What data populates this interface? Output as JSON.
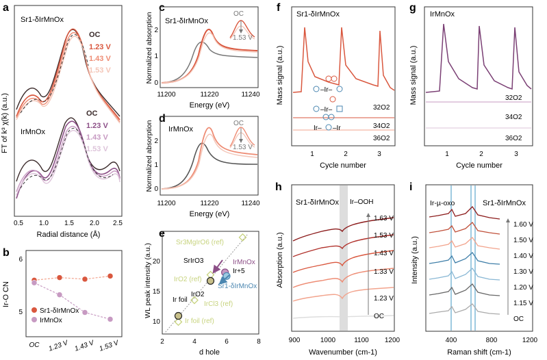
{
  "colors": {
    "sr": "#d9573e",
    "sr_light": "#f2a38c",
    "sr_pale": "#f4c6b8",
    "ir": "#8c4f87",
    "ir_light": "#c79ac2",
    "ir_pale": "#ddc4da",
    "dark": "#3a2a2a",
    "grey": "#777777",
    "raman_blue": "#7fbfdc",
    "ref_green": "#c7d37e",
    "fit": "#333333"
  },
  "panels": {
    "a": {
      "letter": "a",
      "ylabel": "FT of k³ χ(k) (a.u.)",
      "xlabel": "Radial distance (Å)",
      "xlim": [
        0.5,
        2.5
      ],
      "xticks": [
        "0.5",
        "1.0",
        "1.5",
        "2.0",
        "2.5"
      ],
      "sample_top": "Sr1-δIrMnOx",
      "sample_bottom": "IrMnOx",
      "legend_top": [
        "OC",
        "1.23 V",
        "1.43 V",
        "1.53 V"
      ],
      "legend_bottom": [
        "OC",
        "1.23 V",
        "1.43 V",
        "1.53 V"
      ]
    },
    "b": {
      "letter": "b",
      "ylabel": "Ir-O CN",
      "ylim": [
        4.5,
        6.0
      ],
      "yticks": [
        "5",
        "6"
      ],
      "categories": [
        "OC",
        "1.23 V",
        "1.43 V",
        "1.53 V"
      ],
      "legend": [
        "Sr1-δIrMnOx",
        "IrMnOx"
      ]
    },
    "c": {
      "letter": "c",
      "sample": "Sr1-δIrMnOx",
      "ylabel": "Normalized absorption",
      "xlabel": "Energy (eV)",
      "xticks": [
        "11200",
        "11220",
        "11240"
      ],
      "yticks": [
        "0",
        "1",
        "2"
      ],
      "inset_oc": "OC",
      "inset_v": "1.53 V"
    },
    "d": {
      "letter": "d",
      "sample": "IrMnOx",
      "ylabel": "Normalized absorption",
      "xlabel": "Energy (eV)",
      "xticks": [
        "11200",
        "11220",
        "11240"
      ],
      "yticks": [
        "0",
        "1",
        "2"
      ],
      "inset_oc": "OC",
      "inset_v": "1.53 V"
    },
    "e": {
      "letter": "e",
      "ylabel": "WL peak intensity (a.u.)",
      "xlabel": "d hole",
      "xticks": [
        "2",
        "4",
        "6",
        "8"
      ],
      "yticks": [
        "10",
        "15",
        "20"
      ],
      "labels": {
        "sr3mg": "Sr3MgIrO6 (ref)",
        "srir": "SrIrO3",
        "irmn": "IrMnOx",
        "ir5": "Ir+5",
        "iro2ref": "IrO2 (ref)",
        "iro2": "IrO2",
        "sriirmn": "Sr1-δIrMnOx",
        "irfoil": "Ir foil",
        "ircl3": "IrCl3 (ref)",
        "irfoilref": "Ir foil (ref)"
      }
    },
    "f": {
      "letter": "f",
      "sample": "Sr1-δIrMnOx",
      "ylabel": "Mass signal (a.u.)",
      "xlabel": "Cycle number",
      "xticks": [
        "1",
        "2",
        "3"
      ],
      "series": [
        "32O2",
        "34O2",
        "36O2"
      ]
    },
    "g": {
      "letter": "g",
      "sample": "IrMnOx",
      "ylabel": "Mass signal (a.u.)",
      "xlabel": "Cycle number",
      "xticks": [
        "1",
        "2",
        "3"
      ],
      "series": [
        "32O2",
        "34O2",
        "36O2"
      ]
    },
    "h": {
      "letter": "h",
      "sample": "Sr1-δIrMnOx",
      "ylabel": "Absorption (a.u.)",
      "xlabel": "Wavenumber (cm-1)",
      "xticks": [
        "900",
        "1000",
        "1100",
        "1200"
      ],
      "potentials": [
        "1.63 V",
        "1.53 V",
        "1.43 V",
        "1.33 V",
        "1.23 V",
        "OC"
      ],
      "annot": "Ir–OOH"
    },
    "i": {
      "letter": "i",
      "sample": "Sr1-δIrMnOx",
      "ylabel": "Intensity (a.u.)",
      "xlabel": "Raman shift (cm-1)",
      "xticks": [
        "400",
        "800",
        "1200"
      ],
      "potentials": [
        "1.60 V",
        "1.50 V",
        "1.40 V",
        "1.30 V",
        "1.20 V",
        "1.15 V",
        "OC"
      ],
      "annot": "Ir-µ-oxo"
    }
  },
  "chart_data": [
    {
      "id": "b",
      "type": "line",
      "categories": [
        "OC",
        "1.23 V",
        "1.43 V",
        "1.53 V"
      ],
      "series": [
        {
          "name": "Sr1-δIrMnOx",
          "values": [
            5.6,
            5.65,
            5.62,
            5.68
          ]
        },
        {
          "name": "IrMnOx",
          "values": [
            5.55,
            5.32,
            4.98,
            4.85
          ]
        }
      ],
      "ylim": [
        4.5,
        6.0
      ],
      "ylabel": "Ir-O CN"
    },
    {
      "id": "e",
      "type": "scatter",
      "points": [
        {
          "name": "Ir foil",
          "x": 3.0,
          "y": 12.0
        },
        {
          "name": "IrO2",
          "x": 5.0,
          "y": 17.8
        },
        {
          "name": "IrMnOx",
          "x": 5.9,
          "y": 19.2
        },
        {
          "name": "Sr1-δIrMnOx",
          "x": 6.0,
          "y": 18.6
        }
      ],
      "refs": [
        {
          "name": "Sr3MgIrO6 (ref)",
          "x": 7.0,
          "y": 25.0
        },
        {
          "name": "IrO2 (ref)",
          "x": 5.0,
          "y": 18.8
        },
        {
          "name": "IrCl3 (ref)",
          "x": 4.0,
          "y": 14.6
        },
        {
          "name": "Ir foil (ref)",
          "x": 3.0,
          "y": 11.0
        }
      ],
      "xlim": [
        2,
        8
      ],
      "ylim": [
        9,
        26
      ],
      "xlabel": "d hole",
      "ylabel": "WL peak intensity (a.u.)"
    }
  ]
}
